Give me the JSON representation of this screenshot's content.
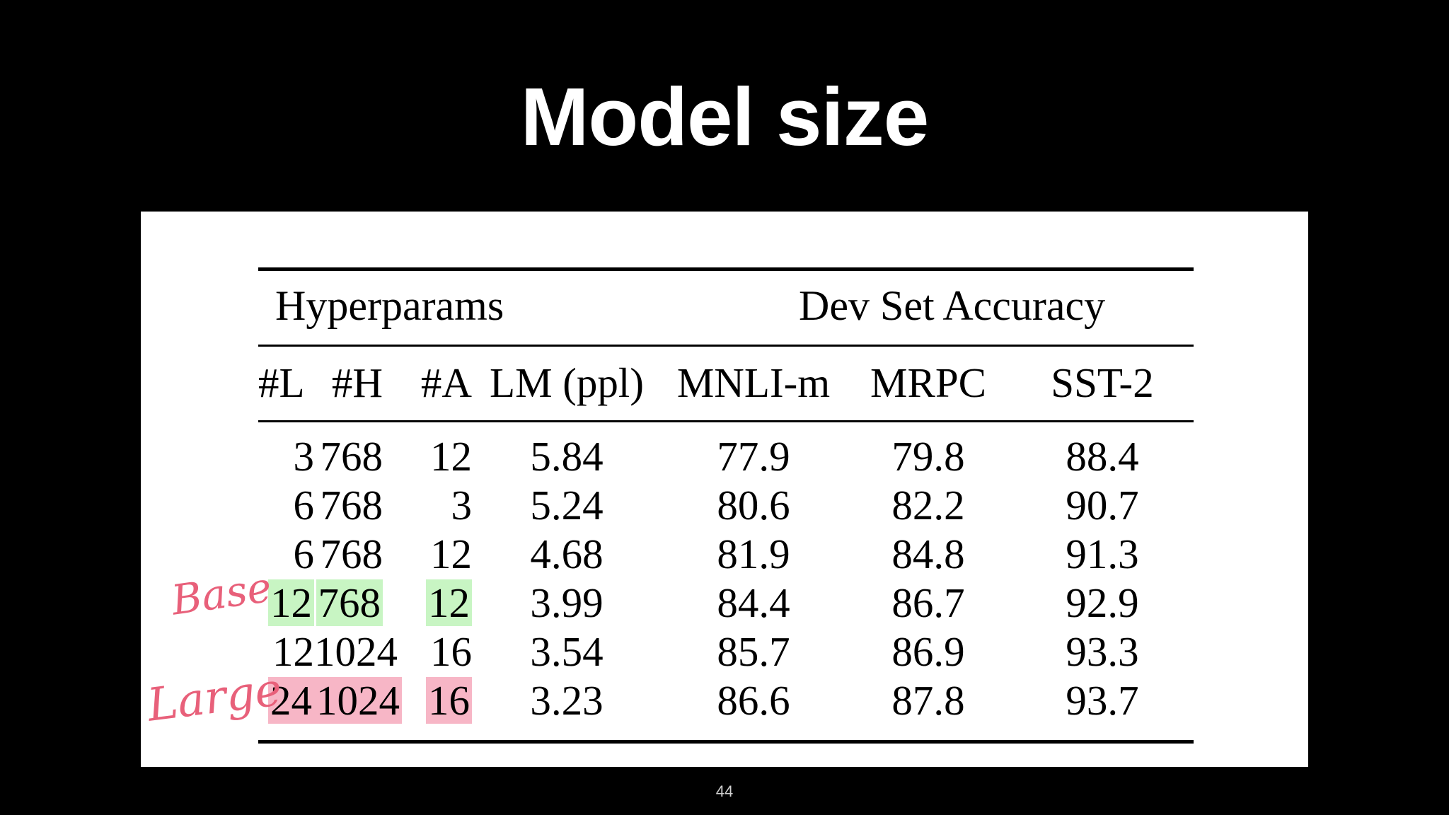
{
  "slide": {
    "title": "Model size",
    "page_number": "44"
  },
  "table": {
    "group_headers": [
      "Hyperparams",
      "Dev Set Accuracy"
    ],
    "columns": [
      "#L",
      "#H",
      "#A",
      "LM (ppl)",
      "MNLI-m",
      "MRPC",
      "SST-2"
    ],
    "rows": [
      [
        "3",
        "768",
        "12",
        "5.84",
        "77.9",
        "79.8",
        "88.4"
      ],
      [
        "6",
        "768",
        "3",
        "5.24",
        "80.6",
        "82.2",
        "90.7"
      ],
      [
        "6",
        "768",
        "12",
        "4.68",
        "81.9",
        "84.8",
        "91.3"
      ],
      [
        "12",
        "768",
        "12",
        "3.99",
        "84.4",
        "86.7",
        "92.9"
      ],
      [
        "12",
        "1024",
        "16",
        "3.54",
        "85.7",
        "86.9",
        "93.3"
      ],
      [
        "24",
        "1024",
        "16",
        "3.23",
        "86.6",
        "87.8",
        "93.7"
      ]
    ],
    "highlight_colors": {
      "base": "#c8f5c3",
      "large": "#f7b6c6"
    }
  },
  "annotations": {
    "base_label": "Base",
    "large_label": "Large",
    "ink_color": "#e8607a"
  }
}
